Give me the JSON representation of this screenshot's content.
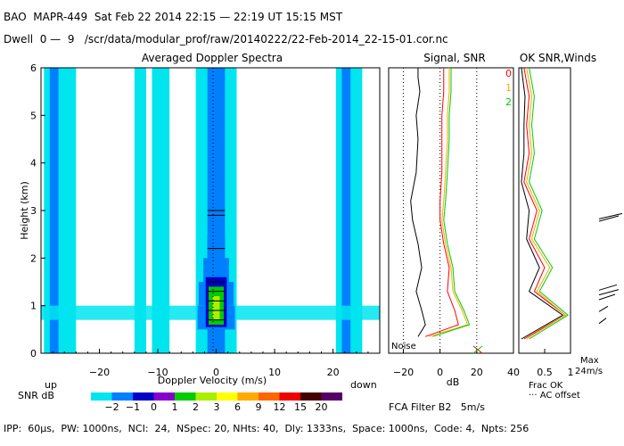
{
  "header": {
    "line1": "BAO  MAPR-449  Sat Feb 22 2014 22:15 — 22:19 UT 15:15 MST",
    "line2": "Dwell  0 —  9   /scr/data/modular_prof/raw/20140222/22-Feb-2014_22-15-01.cor.nc"
  },
  "footer": {
    "params": "IPP:  60µs,  PW: 1000ns,  NCI:  24,  NSpec: 20, NHts: 40,  Dly: 1333ns,  Space: 1000ns,  Code: 4,  Npts: 256",
    "fca": "FCA Filter B2   5m/s"
  },
  "legend": {
    "snr_label": "SNR dB",
    "up_label": "up",
    "down_label": "down",
    "values": [
      "−2",
      "−1",
      "0",
      "1",
      "2",
      "3",
      "6",
      "9",
      "12",
      "15",
      "20"
    ],
    "colors": [
      "#00e5ee",
      "#0080ff",
      "#0000c8",
      "#8800cc",
      "#00cc00",
      "#aaee00",
      "#ffff00",
      "#ffaa00",
      "#ff6600",
      "#ee0000",
      "#440000",
      "#550066"
    ]
  },
  "chart_data": [
    {
      "type": "heatmap",
      "title": "Averaged Doppler Spectra",
      "xlabel": "Doppler Velocity (m/s)",
      "ylabel": "Height (km)",
      "xlim": [
        -30,
        28
      ],
      "ylim": [
        0,
        6
      ],
      "xticks": [
        -20,
        -10,
        0,
        10,
        20
      ],
      "yticks": [
        0,
        1,
        2,
        3,
        4,
        5,
        6
      ],
      "vertical_bands": [
        {
          "x": [
            -29.5,
            -24
          ],
          "level": "low"
        },
        {
          "x": [
            -28.5,
            -27
          ],
          "level": "high"
        },
        {
          "x": [
            -14,
            -12
          ],
          "level": "low"
        },
        {
          "x": [
            -11,
            -8
          ],
          "level": "low"
        },
        {
          "x": [
            -3.5,
            3.5
          ],
          "level": "low"
        },
        {
          "x": [
            -1.5,
            1.5
          ],
          "level": "high"
        },
        {
          "x": [
            20.5,
            25
          ],
          "level": "low"
        },
        {
          "x": [
            21.5,
            23
          ],
          "level": "high"
        }
      ],
      "core_profile": {
        "height_km": [
          0.5,
          1.0,
          1.5,
          2.0,
          2.5,
          3.0
        ],
        "half_width_ms": [
          3.2,
          3.0,
          2.2,
          1.5,
          1.0,
          1.0
        ]
      }
    },
    {
      "type": "line",
      "title": "Signal, SNR",
      "xlabel": "dB",
      "xlim": [
        -28,
        40
      ],
      "ylim": [
        0,
        6
      ],
      "xticks": [
        -20,
        0,
        20,
        40
      ],
      "noise_label": "Noise",
      "series": [
        {
          "name": "signal",
          "color": "#000000",
          "x": [
            -12,
            -8,
            -10,
            -13,
            -10,
            -12,
            -15,
            -16,
            -13,
            -12,
            -13,
            -11,
            -12,
            -12
          ],
          "y": [
            0.35,
            0.6,
            0.9,
            1.3,
            1.8,
            2.3,
            2.8,
            3.2,
            3.8,
            4.5,
            5.0,
            5.5,
            5.8,
            6.0
          ]
        },
        {
          "name": "beam 0",
          "color": "#ff0000",
          "x": [
            -8,
            10,
            8,
            4,
            5,
            2,
            0,
            0,
            1,
            1,
            1,
            2,
            2,
            2
          ],
          "y": [
            0.35,
            0.6,
            0.9,
            1.3,
            1.8,
            2.3,
            2.8,
            3.2,
            3.8,
            4.5,
            5.0,
            5.5,
            5.8,
            6.0
          ]
        },
        {
          "name": "beam 1",
          "color": "#ffaa00",
          "x": [
            -6,
            15,
            12,
            7,
            6,
            3,
            1,
            2,
            3,
            4,
            4,
            5,
            5,
            5
          ],
          "y": [
            0.35,
            0.6,
            0.9,
            1.3,
            1.8,
            2.3,
            2.8,
            3.2,
            3.8,
            4.5,
            5.0,
            5.5,
            5.8,
            6.0
          ]
        },
        {
          "name": "beam 2",
          "color": "#00cc00",
          "x": [
            -4,
            16,
            13,
            8,
            7,
            4,
            2,
            3,
            4,
            5,
            5,
            6,
            6,
            6
          ],
          "y": [
            0.35,
            0.6,
            0.9,
            1.3,
            1.8,
            2.3,
            2.8,
            3.2,
            3.8,
            4.5,
            5.0,
            5.5,
            5.8,
            6.0
          ]
        }
      ]
    },
    {
      "type": "line",
      "title": "OK SNR,Winds",
      "beam_labels": [
        "0",
        "1",
        "2"
      ],
      "xlabel": "Frac OK",
      "xlabel2": "AC offset",
      "max_label": "Max",
      "max_value": "24m/s",
      "xticks": [
        "0.5",
        "1"
      ],
      "ylim": [
        0,
        6
      ]
    }
  ]
}
